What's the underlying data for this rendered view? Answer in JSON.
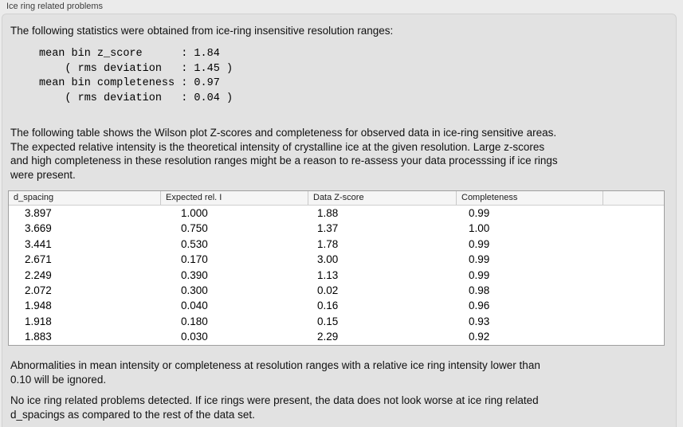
{
  "panel": {
    "title": "Ice ring related problems"
  },
  "intro": {
    "text": "The following statistics were obtained from ice-ring insensitive resolution ranges:"
  },
  "stats": {
    "block": "mean bin z_score      : 1.84\n    ( rms deviation   : 1.45 )\nmean bin completeness : 0.97\n    ( rms deviation   : 0.04 )",
    "mean_bin_z_score": "1.84",
    "z_score_rms_deviation": "1.45",
    "mean_bin_completeness": "0.97",
    "completeness_rms_deviation": "0.04"
  },
  "table_intro": {
    "text": "The following table shows the Wilson plot Z-scores and completeness for observed data in ice-ring sensitive areas.\nThe expected relative intensity is the theoretical intensity of crystalline ice at the given resolution. Large z-scores\nand high completeness in these resolution ranges might be a reason to re-assess your data processsing if ice rings\nwere present."
  },
  "table": {
    "columns": [
      "d_spacing",
      "Expected rel. I",
      "Data Z-score",
      "Completeness"
    ],
    "rows": [
      [
        "3.897",
        "1.000",
        "1.88",
        "0.99"
      ],
      [
        "3.669",
        "0.750",
        "1.37",
        "1.00"
      ],
      [
        "3.441",
        "0.530",
        "1.78",
        "0.99"
      ],
      [
        "2.671",
        "0.170",
        "3.00",
        "0.99"
      ],
      [
        "2.249",
        "0.390",
        "1.13",
        "0.99"
      ],
      [
        "2.072",
        "0.300",
        "0.02",
        "0.98"
      ],
      [
        "1.948",
        "0.040",
        "0.16",
        "0.96"
      ],
      [
        "1.918",
        "0.180",
        "0.15",
        "0.93"
      ],
      [
        "1.883",
        "0.030",
        "2.29",
        "0.92"
      ]
    ]
  },
  "notes": {
    "ignore_note": "Abnormalities in mean intensity or completeness at resolution ranges with a relative ice ring intensity lower than\n0.10 will be ignored.",
    "conclusion": "No ice ring related problems detected. If ice rings were present, the data does not look worse at ice ring related\nd_spacings as compared to the rest of the data set."
  },
  "colors": {
    "window_bg": "#ebebeb",
    "panel_bg": "#e2e2e2",
    "panel_border": "#d1d1d1",
    "table_bg": "#ffffff",
    "table_border": "#9e9e9e",
    "table_header_bg": "#f5f5f5",
    "text": "#141414"
  }
}
